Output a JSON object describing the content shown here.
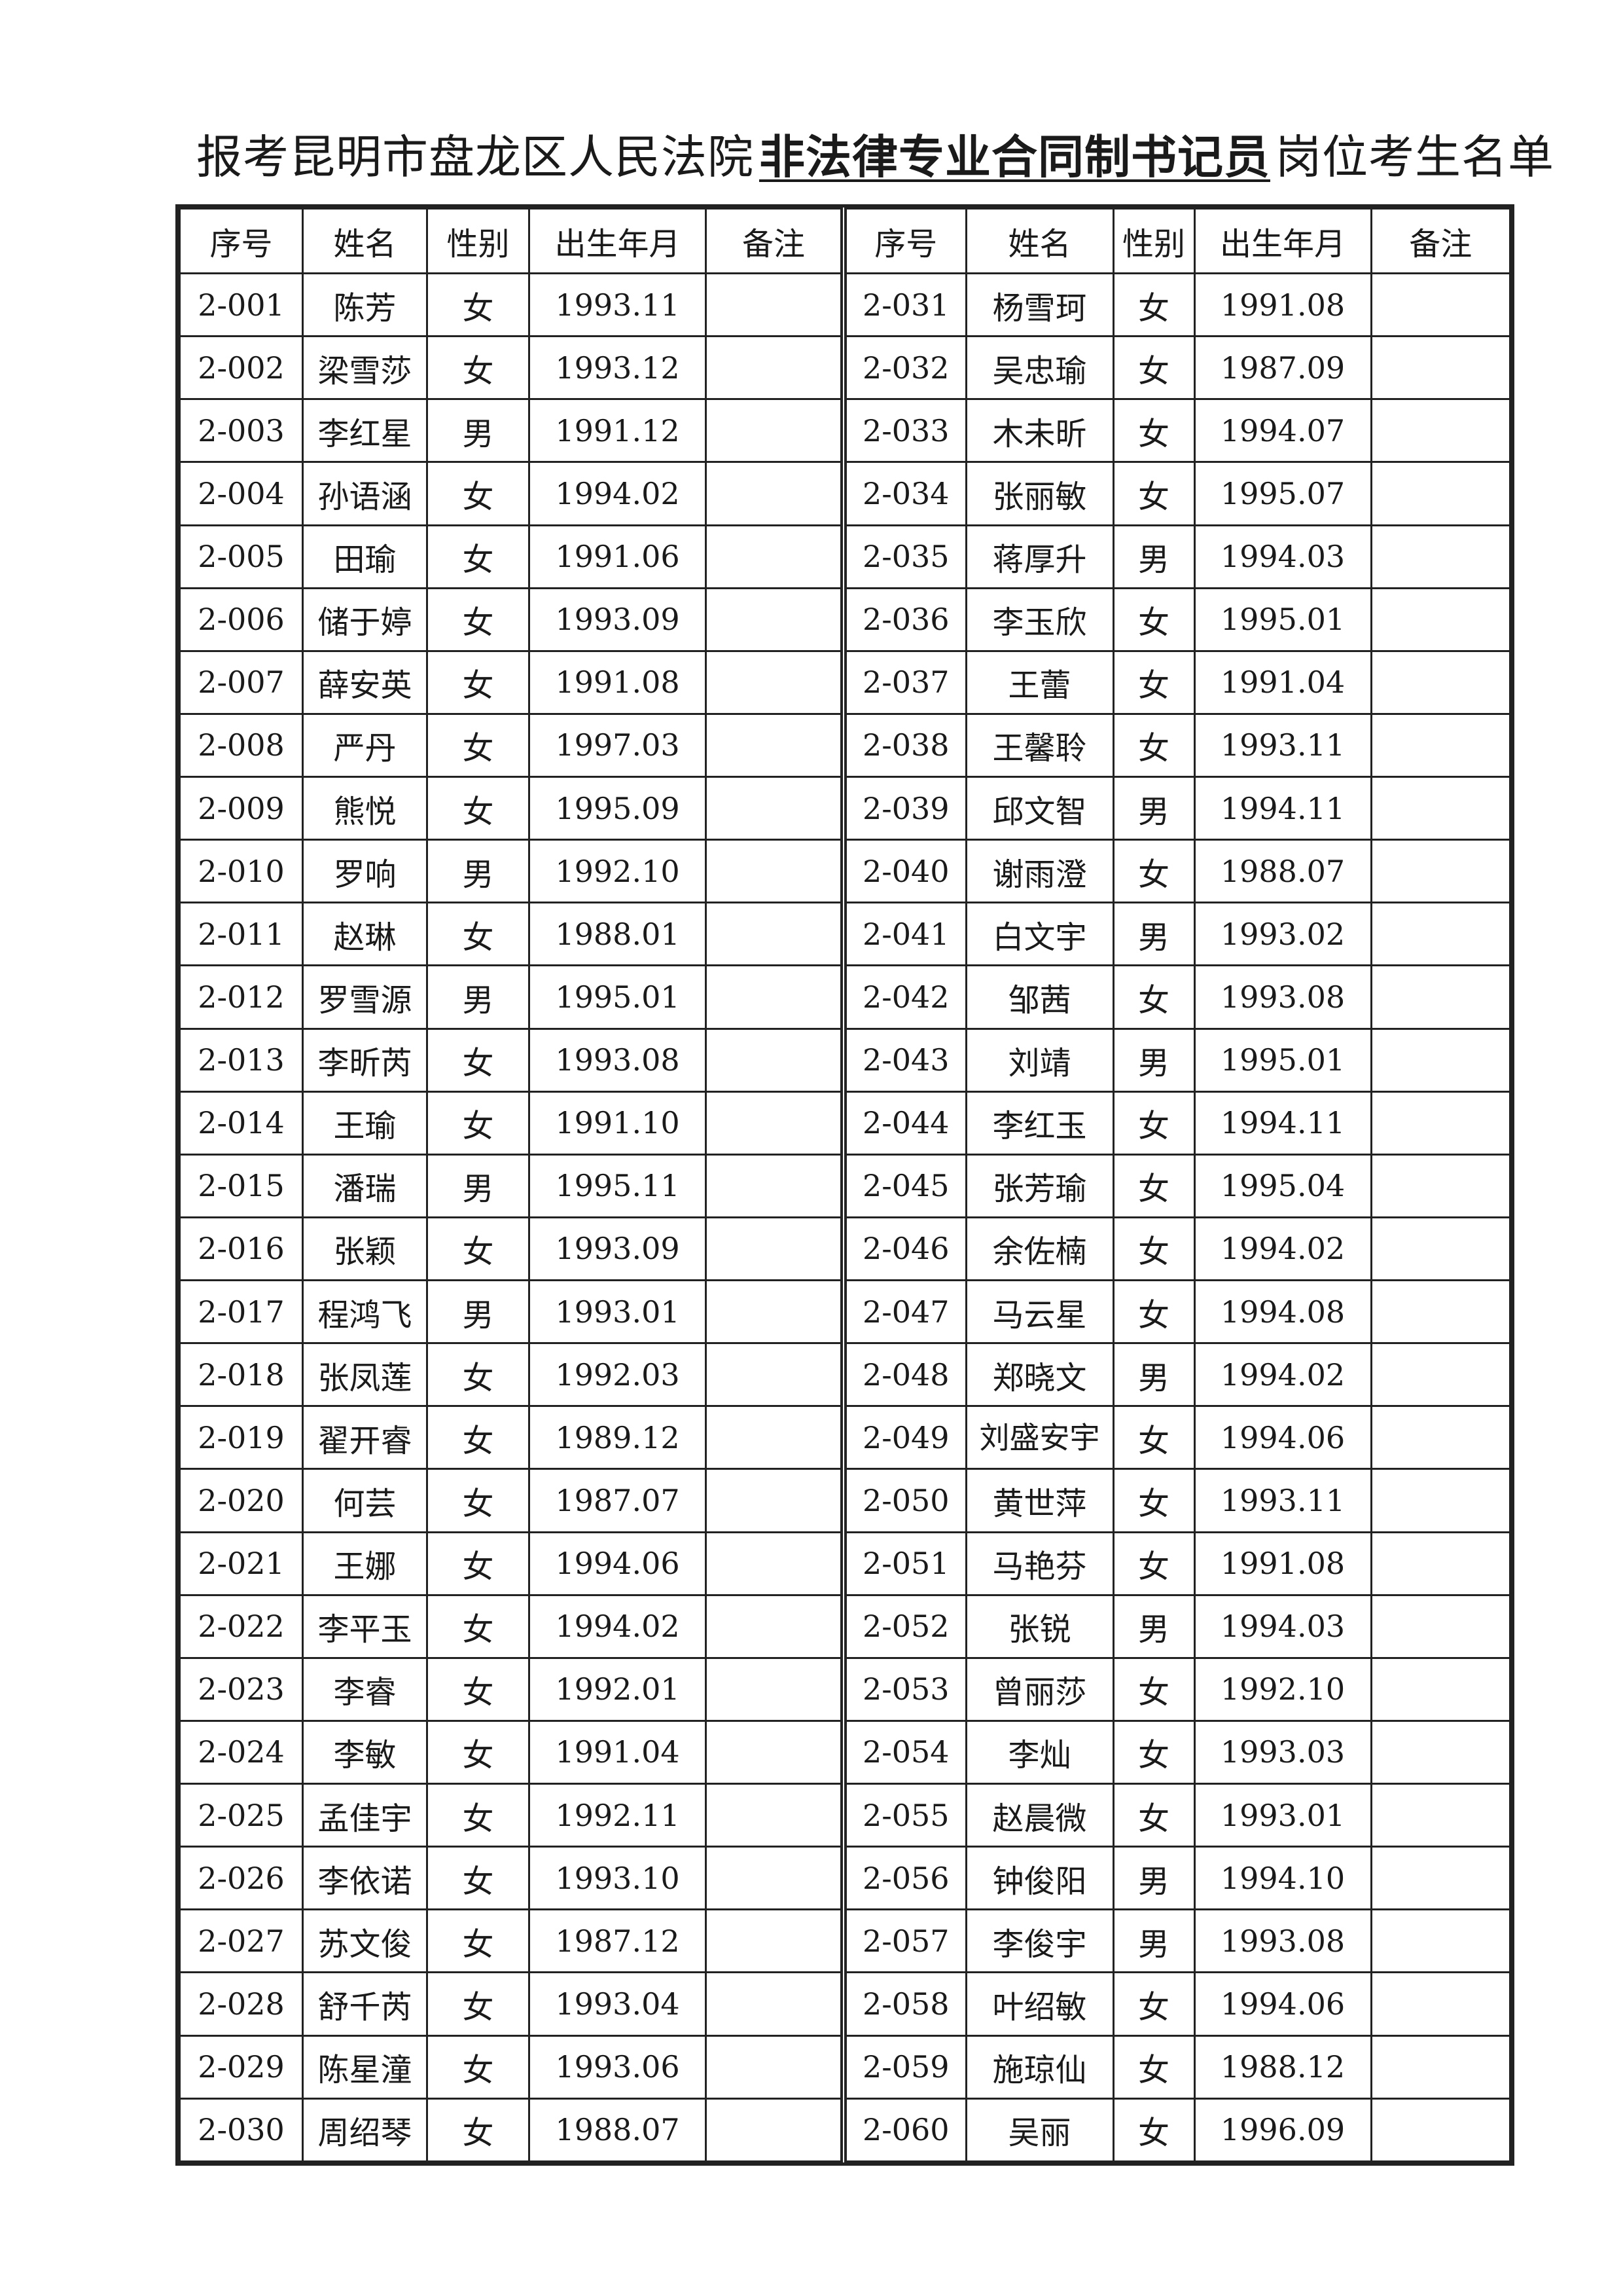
{
  "title": {
    "prefix": "报考昆明市盘龙区人民法院",
    "post": "非法律专业合同制书记员",
    "suffix": "岗位考生名单"
  },
  "headers": [
    "序号",
    "姓名",
    "性别",
    "出生年月",
    "备注"
  ],
  "left_rows": [
    {
      "no": "2-001",
      "name": "陈芳",
      "gender": "女",
      "birth": "1993.11",
      "note": ""
    },
    {
      "no": "2-002",
      "name": "梁雪莎",
      "gender": "女",
      "birth": "1993.12",
      "note": ""
    },
    {
      "no": "2-003",
      "name": "李红星",
      "gender": "男",
      "birth": "1991.12",
      "note": ""
    },
    {
      "no": "2-004",
      "name": "孙语涵",
      "gender": "女",
      "birth": "1994.02",
      "note": ""
    },
    {
      "no": "2-005",
      "name": "田瑜",
      "gender": "女",
      "birth": "1991.06",
      "note": ""
    },
    {
      "no": "2-006",
      "name": "储于婷",
      "gender": "女",
      "birth": "1993.09",
      "note": ""
    },
    {
      "no": "2-007",
      "name": "薛安英",
      "gender": "女",
      "birth": "1991.08",
      "note": ""
    },
    {
      "no": "2-008",
      "name": "严丹",
      "gender": "女",
      "birth": "1997.03",
      "note": ""
    },
    {
      "no": "2-009",
      "name": "熊悦",
      "gender": "女",
      "birth": "1995.09",
      "note": ""
    },
    {
      "no": "2-010",
      "name": "罗响",
      "gender": "男",
      "birth": "1992.10",
      "note": ""
    },
    {
      "no": "2-011",
      "name": "赵琳",
      "gender": "女",
      "birth": "1988.01",
      "note": ""
    },
    {
      "no": "2-012",
      "name": "罗雪源",
      "gender": "男",
      "birth": "1995.01",
      "note": ""
    },
    {
      "no": "2-013",
      "name": "李昕芮",
      "gender": "女",
      "birth": "1993.08",
      "note": ""
    },
    {
      "no": "2-014",
      "name": "王瑜",
      "gender": "女",
      "birth": "1991.10",
      "note": ""
    },
    {
      "no": "2-015",
      "name": "潘瑞",
      "gender": "男",
      "birth": "1995.11",
      "note": ""
    },
    {
      "no": "2-016",
      "name": "张颖",
      "gender": "女",
      "birth": "1993.09",
      "note": ""
    },
    {
      "no": "2-017",
      "name": "程鸿飞",
      "gender": "男",
      "birth": "1993.01",
      "note": ""
    },
    {
      "no": "2-018",
      "name": "张凤莲",
      "gender": "女",
      "birth": "1992.03",
      "note": ""
    },
    {
      "no": "2-019",
      "name": "翟开睿",
      "gender": "女",
      "birth": "1989.12",
      "note": ""
    },
    {
      "no": "2-020",
      "name": "何芸",
      "gender": "女",
      "birth": "1987.07",
      "note": ""
    },
    {
      "no": "2-021",
      "name": "王娜",
      "gender": "女",
      "birth": "1994.06",
      "note": ""
    },
    {
      "no": "2-022",
      "name": "李平玉",
      "gender": "女",
      "birth": "1994.02",
      "note": ""
    },
    {
      "no": "2-023",
      "name": "李睿",
      "gender": "女",
      "birth": "1992.01",
      "note": ""
    },
    {
      "no": "2-024",
      "name": "李敏",
      "gender": "女",
      "birth": "1991.04",
      "note": ""
    },
    {
      "no": "2-025",
      "name": "孟佳宇",
      "gender": "女",
      "birth": "1992.11",
      "note": ""
    },
    {
      "no": "2-026",
      "name": "李依诺",
      "gender": "女",
      "birth": "1993.10",
      "note": ""
    },
    {
      "no": "2-027",
      "name": "苏文俊",
      "gender": "女",
      "birth": "1987.12",
      "note": ""
    },
    {
      "no": "2-028",
      "name": "舒千芮",
      "gender": "女",
      "birth": "1993.04",
      "note": ""
    },
    {
      "no": "2-029",
      "name": "陈星潼",
      "gender": "女",
      "birth": "1993.06",
      "note": ""
    },
    {
      "no": "2-030",
      "name": "周绍琴",
      "gender": "女",
      "birth": "1988.07",
      "note": ""
    }
  ],
  "right_rows": [
    {
      "no": "2-031",
      "name": "杨雪珂",
      "gender": "女",
      "birth": "1991.08",
      "note": ""
    },
    {
      "no": "2-032",
      "name": "吴忠瑜",
      "gender": "女",
      "birth": "1987.09",
      "note": ""
    },
    {
      "no": "2-033",
      "name": "木未昕",
      "gender": "女",
      "birth": "1994.07",
      "note": ""
    },
    {
      "no": "2-034",
      "name": "张丽敏",
      "gender": "女",
      "birth": "1995.07",
      "note": ""
    },
    {
      "no": "2-035",
      "name": "蒋厚升",
      "gender": "男",
      "birth": "1994.03",
      "note": ""
    },
    {
      "no": "2-036",
      "name": "李玉欣",
      "gender": "女",
      "birth": "1995.01",
      "note": ""
    },
    {
      "no": "2-037",
      "name": "王蕾",
      "gender": "女",
      "birth": "1991.04",
      "note": ""
    },
    {
      "no": "2-038",
      "name": "王馨聆",
      "gender": "女",
      "birth": "1993.11",
      "note": ""
    },
    {
      "no": "2-039",
      "name": "邱文智",
      "gender": "男",
      "birth": "1994.11",
      "note": ""
    },
    {
      "no": "2-040",
      "name": "谢雨澄",
      "gender": "女",
      "birth": "1988.07",
      "note": ""
    },
    {
      "no": "2-041",
      "name": "白文宇",
      "gender": "男",
      "birth": "1993.02",
      "note": ""
    },
    {
      "no": "2-042",
      "name": "邹茜",
      "gender": "女",
      "birth": "1993.08",
      "note": ""
    },
    {
      "no": "2-043",
      "name": "刘靖",
      "gender": "男",
      "birth": "1995.01",
      "note": ""
    },
    {
      "no": "2-044",
      "name": "李红玉",
      "gender": "女",
      "birth": "1994.11",
      "note": ""
    },
    {
      "no": "2-045",
      "name": "张芳瑜",
      "gender": "女",
      "birth": "1995.04",
      "note": ""
    },
    {
      "no": "2-046",
      "name": "余佐楠",
      "gender": "女",
      "birth": "1994.02",
      "note": ""
    },
    {
      "no": "2-047",
      "name": "马云星",
      "gender": "女",
      "birth": "1994.08",
      "note": ""
    },
    {
      "no": "2-048",
      "name": "郑晓文",
      "gender": "男",
      "birth": "1994.02",
      "note": ""
    },
    {
      "no": "2-049",
      "name": "刘盛安宇",
      "gender": "女",
      "birth": "1994.06",
      "note": ""
    },
    {
      "no": "2-050",
      "name": "黄世萍",
      "gender": "女",
      "birth": "1993.11",
      "note": ""
    },
    {
      "no": "2-051",
      "name": "马艳芬",
      "gender": "女",
      "birth": "1991.08",
      "note": ""
    },
    {
      "no": "2-052",
      "name": "张锐",
      "gender": "男",
      "birth": "1994.03",
      "note": ""
    },
    {
      "no": "2-053",
      "name": "曾丽莎",
      "gender": "女",
      "birth": "1992.10",
      "note": ""
    },
    {
      "no": "2-054",
      "name": "李灿",
      "gender": "女",
      "birth": "1993.03",
      "note": ""
    },
    {
      "no": "2-055",
      "name": "赵晨微",
      "gender": "女",
      "birth": "1993.01",
      "note": ""
    },
    {
      "no": "2-056",
      "name": "钟俊阳",
      "gender": "男",
      "birth": "1994.10",
      "note": ""
    },
    {
      "no": "2-057",
      "name": "李俊宇",
      "gender": "男",
      "birth": "1993.08",
      "note": ""
    },
    {
      "no": "2-058",
      "name": "叶绍敏",
      "gender": "女",
      "birth": "1994.06",
      "note": ""
    },
    {
      "no": "2-059",
      "name": "施琼仙",
      "gender": "女",
      "birth": "1988.12",
      "note": ""
    },
    {
      "no": "2-060",
      "name": "吴丽",
      "gender": "女",
      "birth": "1996.09",
      "note": ""
    }
  ]
}
